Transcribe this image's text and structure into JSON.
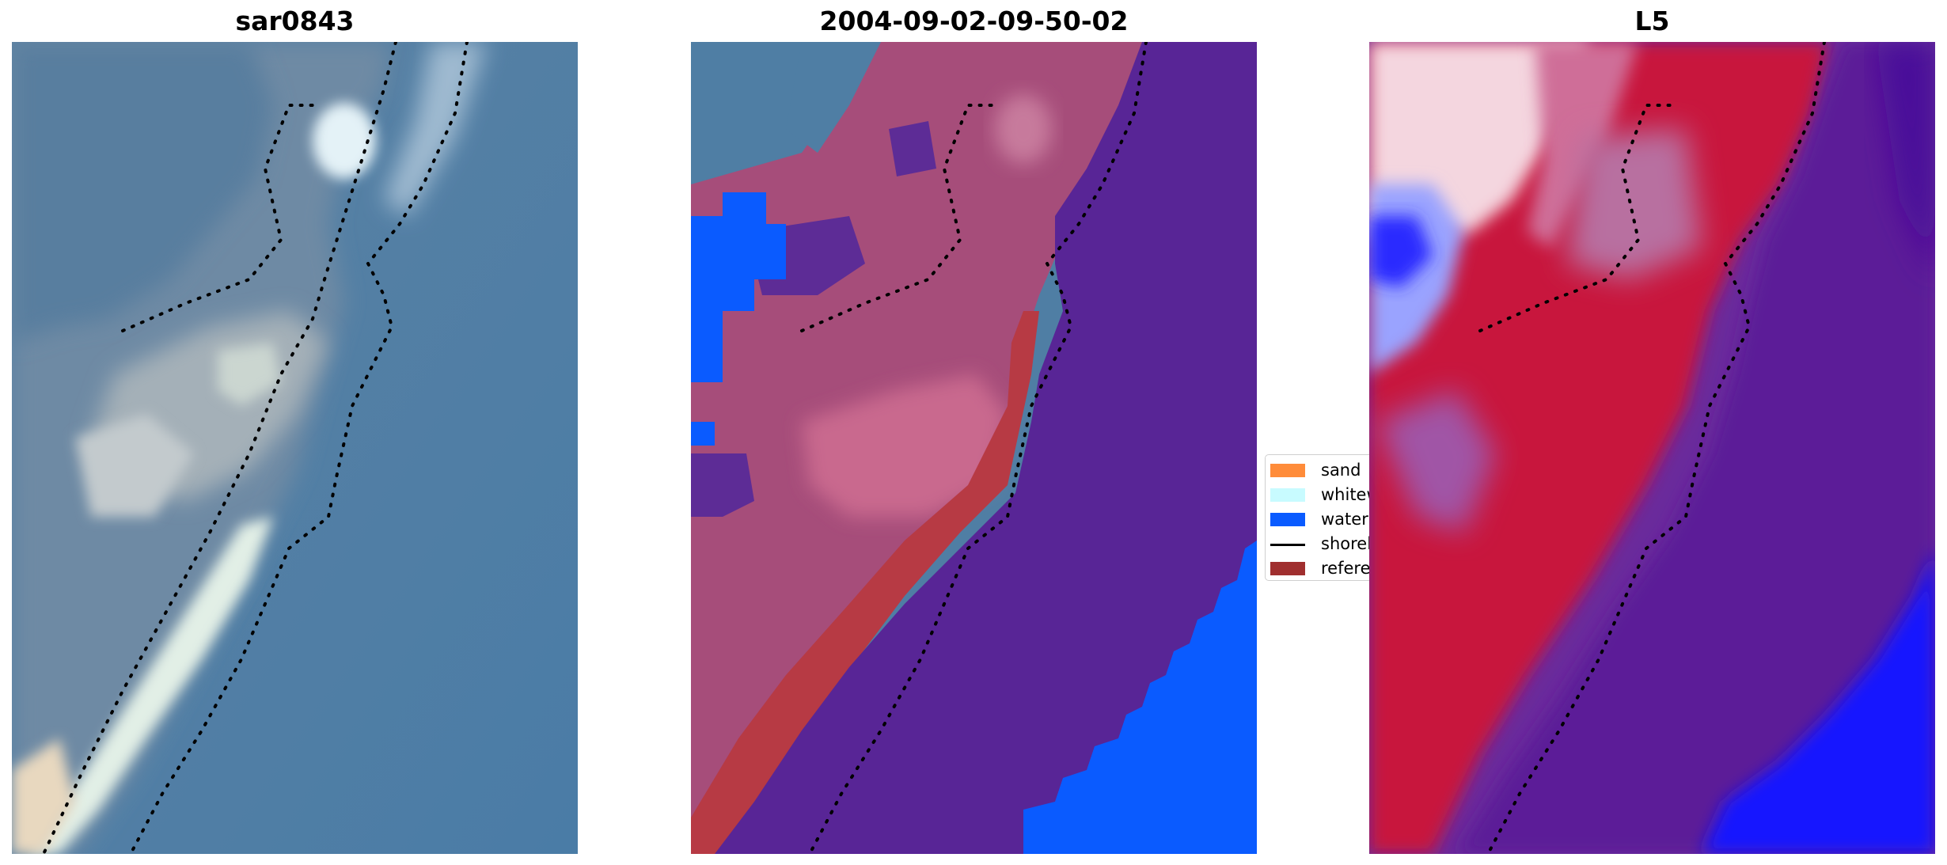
{
  "figure": {
    "panels": [
      {
        "id": "rgb",
        "title": "sar0843"
      },
      {
        "id": "classification",
        "title": "2004-09-02-09-50-02"
      },
      {
        "id": "mndwi",
        "title": "L5"
      }
    ]
  },
  "legend": {
    "items": [
      {
        "label": "sand",
        "color": "#ff8c3a",
        "kind": "patch"
      },
      {
        "label": "whitewater",
        "color": "#c8fbff",
        "kind": "patch"
      },
      {
        "label": "water",
        "color": "#0a5bff",
        "kind": "patch"
      },
      {
        "label": "shoreline",
        "color": "#000000",
        "kind": "line"
      },
      {
        "label": "reference shoreline",
        "color": "#a02f2f",
        "kind": "patch"
      }
    ]
  },
  "colors": {
    "ocean_rgb": "#4d7fa8",
    "land_rgb": "#8ea2b2",
    "surf": "#d8ecea",
    "class_overlay": "#582596",
    "class_water": "#0a5bff",
    "class_sand_region": "#c24a5a",
    "class_reference": "#b73a44",
    "mndwi_red": "#c8163e",
    "mndwi_purple": "#5a1f96",
    "mndwi_blue": "#1418ff",
    "mndwi_white": "#f6e7ee"
  }
}
